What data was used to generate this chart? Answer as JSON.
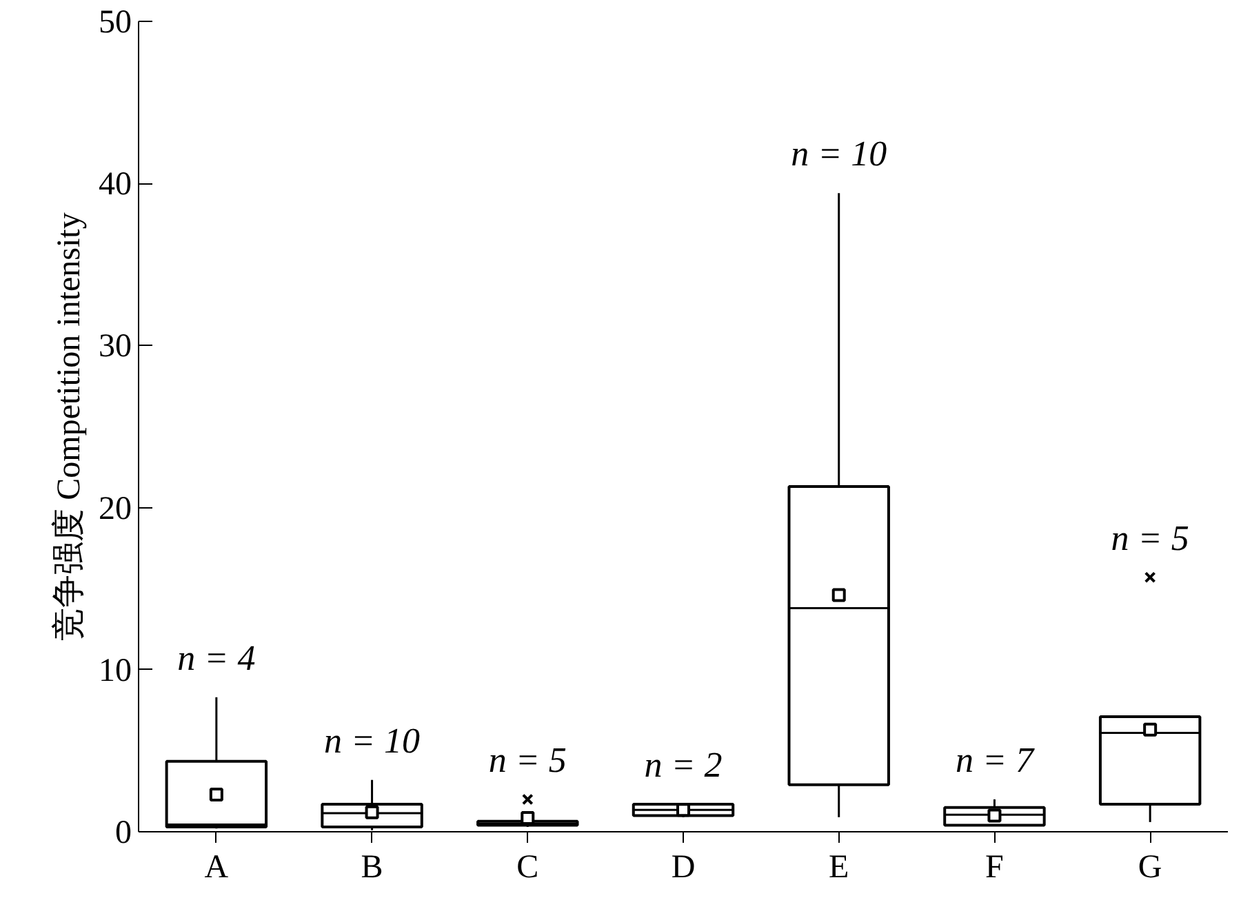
{
  "chart_data": {
    "type": "box",
    "ylabel": "竞争强度 Competition intensity",
    "categories": [
      "A",
      "B",
      "C",
      "D",
      "E",
      "F",
      "G"
    ],
    "boxes": [
      {
        "low": 0.2,
        "q1": 0.3,
        "median": 0.45,
        "q3": 4.35,
        "high": 8.3,
        "mean": 2.3
      },
      {
        "low": 0.1,
        "q1": 0.3,
        "median": 1.15,
        "q3": 1.7,
        "high": 3.2,
        "mean": 1.2
      },
      {
        "low": 0.3,
        "q1": 0.4,
        "median": 0.5,
        "q3": 0.65,
        "high": 0.65,
        "mean": 0.85,
        "outliers": [
          2.0
        ]
      },
      {
        "low": 0.9,
        "q1": 1.0,
        "median": 1.35,
        "q3": 1.7,
        "high": 1.7,
        "mean": 1.35
      },
      {
        "low": 0.9,
        "q1": 2.9,
        "median": 13.8,
        "q3": 21.3,
        "high": 39.4,
        "mean": 14.6
      },
      {
        "low": 0.35,
        "q1": 0.4,
        "median": 1.05,
        "q3": 1.5,
        "high": 2.0,
        "mean": 1.0
      },
      {
        "low": 0.6,
        "q1": 1.7,
        "median": 6.1,
        "q3": 7.1,
        "high": 7.1,
        "mean": 6.3,
        "outliers": [
          15.7
        ]
      }
    ],
    "ylim": [
      0,
      50
    ],
    "yticks": [
      0,
      10,
      20,
      30,
      40,
      50
    ],
    "grid": false,
    "color": "#000000",
    "annotations": [
      "n = 4",
      "n = 10",
      "n = 5",
      "n = 2",
      "n = 10",
      "n = 7",
      "n = 5"
    ]
  }
}
